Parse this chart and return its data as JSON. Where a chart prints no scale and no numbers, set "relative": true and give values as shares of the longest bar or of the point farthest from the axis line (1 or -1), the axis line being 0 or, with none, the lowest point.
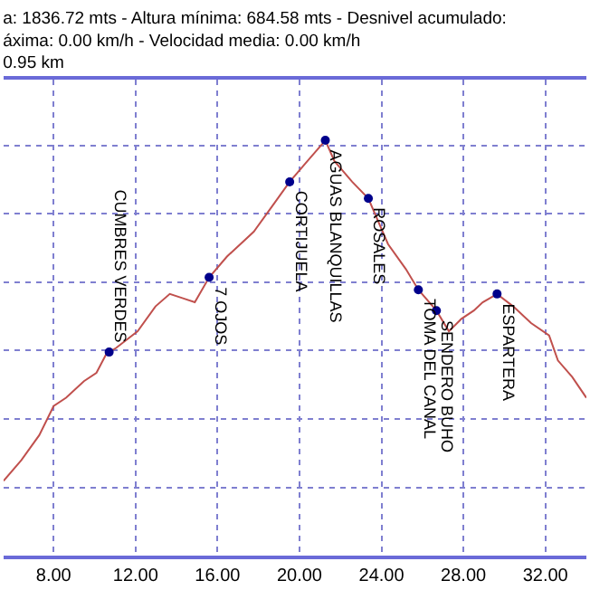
{
  "chart_data": {
    "type": "line",
    "title": "a: 1836.72 mts - Altura mínima: 684.58 mts - Desnivel acumulado:",
    "subtitle": "áxima: 0.00 km/h - Velocidad media: 0.00 km/h\n0.95 km",
    "relative": true,
    "xlim": [
      5.56,
      34.0
    ],
    "xticks": [
      {
        "value": 8,
        "label": "8.00"
      },
      {
        "value": 12,
        "label": "12.00"
      },
      {
        "value": 16,
        "label": "16.00"
      },
      {
        "value": 20,
        "label": "20.00"
      },
      {
        "value": 24,
        "label": "24.00"
      },
      {
        "value": 28,
        "label": "28.00"
      },
      {
        "value": 32,
        "label": "32.00"
      }
    ],
    "grid": true,
    "tick_labels": "x",
    "series": [
      {
        "color": "#c0504d",
        "marker": "none",
        "x": [
          5.56,
          6.43,
          7.3,
          8.0,
          8.61,
          9.48,
          10.09,
          10.62,
          10.71,
          11.05,
          12.1,
          12.97,
          13.67,
          14.28,
          14.89,
          15.59,
          16.46,
          17.77,
          18.65,
          19.52,
          20.39,
          21.09,
          21.26,
          21.7,
          22.57,
          23.36,
          24.32,
          25.19,
          25.8,
          26.68,
          27.29,
          27.9,
          28.51,
          28.94,
          29.64,
          30.43,
          31.3,
          32.18,
          32.61,
          33.31,
          34.0
        ],
        "values": [
          0.18,
          0.23,
          0.29,
          0.36,
          0.38,
          0.42,
          0.44,
          0.49,
          0.49,
          0.5,
          0.54,
          0.6,
          0.63,
          0.62,
          0.61,
          0.67,
          0.72,
          0.78,
          0.84,
          0.9,
          0.95,
          0.99,
          1.0,
          0.95,
          0.9,
          0.86,
          0.75,
          0.69,
          0.64,
          0.59,
          0.54,
          0.57,
          0.59,
          0.61,
          0.63,
          0.6,
          0.56,
          0.53,
          0.47,
          0.43,
          0.38
        ]
      },
      {
        "type": "scatter",
        "color": "#00008b",
        "marker": "circle",
        "x": [
          10.71,
          15.59,
          19.52,
          21.26,
          23.36,
          25.8,
          26.68,
          29.64
        ],
        "values": [
          0.49,
          0.67,
          0.9,
          1.0,
          0.86,
          0.64,
          0.59,
          0.63
        ]
      }
    ],
    "annotations": [
      {
        "text": "CUMBRES VERDES",
        "x": 10.71,
        "y": 0.49
      },
      {
        "text": "7 OJOS",
        "x": 15.59,
        "y": 0.67
      },
      {
        "text": "CORTIJUELA",
        "x": 19.52,
        "y": 0.9
      },
      {
        "text": "AGUAS BLANQUILLAS",
        "x": 21.26,
        "y": 1.0
      },
      {
        "text": "ROSALES",
        "x": 23.36,
        "y": 0.86
      },
      {
        "text": "TOMA DEL CANAL",
        "x": 25.8,
        "y": 0.64
      },
      {
        "text": "SENDERO BUHO",
        "x": 26.68,
        "y": 0.59
      },
      {
        "text": "ESPARTERA",
        "x": 29.64,
        "y": 0.63
      }
    ]
  }
}
